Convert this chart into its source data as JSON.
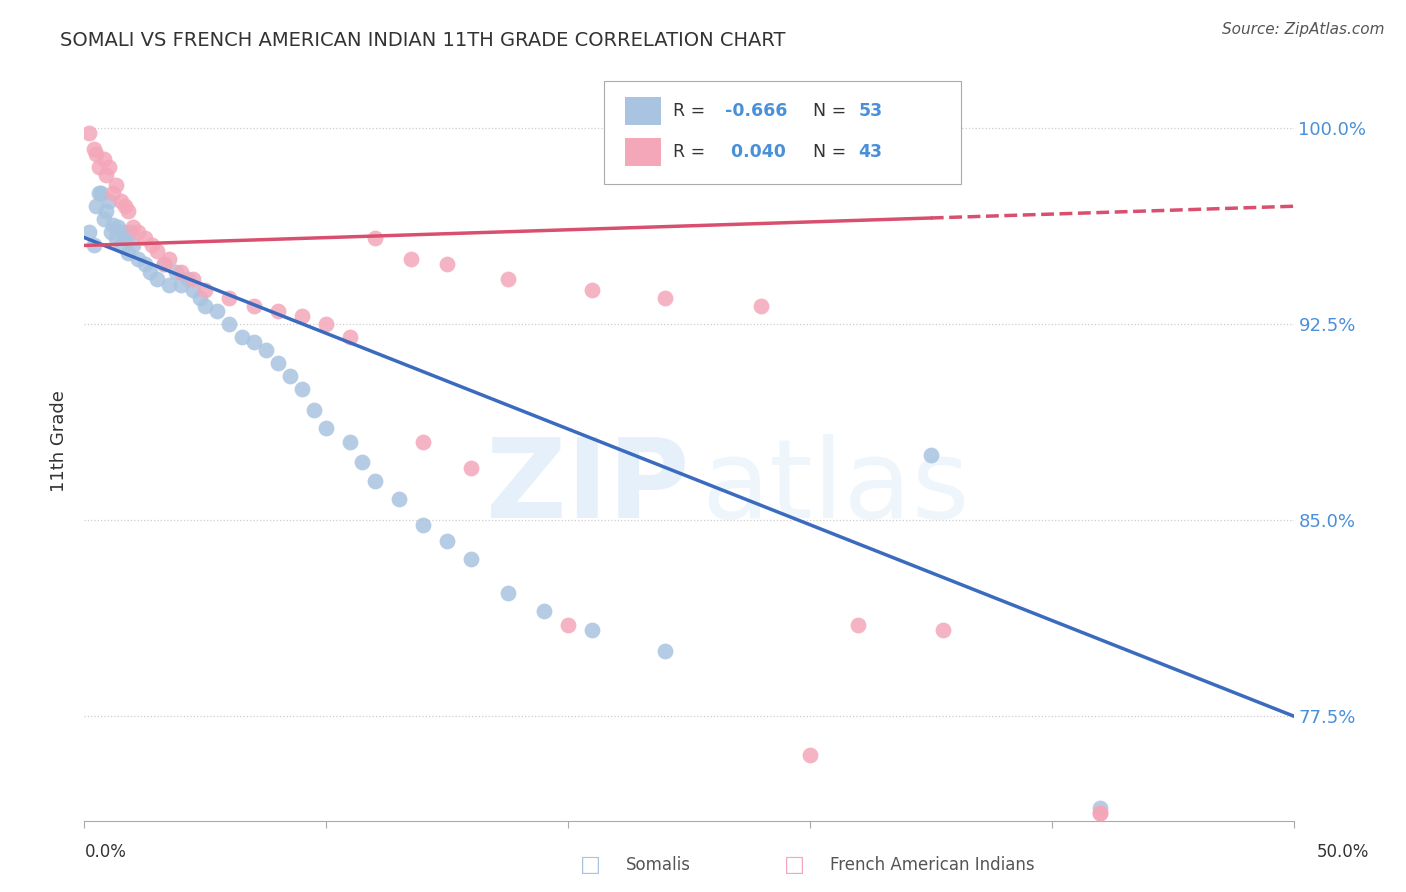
{
  "title": "SOMALI VS FRENCH AMERICAN INDIAN 11TH GRADE CORRELATION CHART",
  "source": "Source: ZipAtlas.com",
  "ylabel": "11th Grade",
  "ytick_labels": [
    "77.5%",
    "85.0%",
    "92.5%",
    "100.0%"
  ],
  "ytick_values": [
    0.775,
    0.85,
    0.925,
    1.0
  ],
  "xlim": [
    0.0,
    0.5
  ],
  "ylim": [
    0.735,
    1.025
  ],
  "legend_somali_R": "-0.666",
  "legend_somali_N": "53",
  "legend_french_R": "0.040",
  "legend_french_N": "43",
  "somali_color": "#a8c4e0",
  "french_color": "#f4a7b9",
  "somali_line_color": "#3a6bbf",
  "french_line_color": "#d94f6e",
  "somali_points_x": [
    0.002,
    0.004,
    0.005,
    0.006,
    0.007,
    0.008,
    0.009,
    0.01,
    0.011,
    0.012,
    0.013,
    0.014,
    0.015,
    0.016,
    0.017,
    0.018,
    0.019,
    0.02,
    0.022,
    0.025,
    0.027,
    0.03,
    0.033,
    0.035,
    0.038,
    0.04,
    0.043,
    0.045,
    0.048,
    0.05,
    0.055,
    0.06,
    0.065,
    0.07,
    0.075,
    0.08,
    0.085,
    0.09,
    0.095,
    0.1,
    0.11,
    0.115,
    0.12,
    0.13,
    0.14,
    0.15,
    0.16,
    0.175,
    0.19,
    0.21,
    0.24,
    0.35,
    0.42
  ],
  "somali_points_y": [
    0.96,
    0.955,
    0.97,
    0.975,
    0.975,
    0.965,
    0.968,
    0.972,
    0.96,
    0.963,
    0.958,
    0.962,
    0.955,
    0.96,
    0.958,
    0.952,
    0.96,
    0.955,
    0.95,
    0.948,
    0.945,
    0.942,
    0.948,
    0.94,
    0.945,
    0.94,
    0.942,
    0.938,
    0.935,
    0.932,
    0.93,
    0.925,
    0.92,
    0.918,
    0.915,
    0.91,
    0.905,
    0.9,
    0.892,
    0.885,
    0.88,
    0.872,
    0.865,
    0.858,
    0.848,
    0.842,
    0.835,
    0.822,
    0.815,
    0.808,
    0.8,
    0.875,
    0.74
  ],
  "french_points_x": [
    0.002,
    0.004,
    0.005,
    0.006,
    0.008,
    0.009,
    0.01,
    0.012,
    0.013,
    0.015,
    0.017,
    0.018,
    0.02,
    0.022,
    0.025,
    0.028,
    0.03,
    0.033,
    0.035,
    0.04,
    0.045,
    0.05,
    0.06,
    0.07,
    0.08,
    0.09,
    0.1,
    0.11,
    0.12,
    0.135,
    0.15,
    0.175,
    0.21,
    0.24,
    0.28,
    0.32,
    0.355,
    0.42,
    0.14,
    0.16,
    0.2,
    0.3,
    0.42
  ],
  "french_points_y": [
    0.998,
    0.992,
    0.99,
    0.985,
    0.988,
    0.982,
    0.985,
    0.975,
    0.978,
    0.972,
    0.97,
    0.968,
    0.962,
    0.96,
    0.958,
    0.955,
    0.953,
    0.948,
    0.95,
    0.945,
    0.942,
    0.938,
    0.935,
    0.932,
    0.93,
    0.928,
    0.925,
    0.92,
    0.958,
    0.95,
    0.948,
    0.942,
    0.938,
    0.935,
    0.932,
    0.81,
    0.808,
    0.738,
    0.88,
    0.87,
    0.81,
    0.76,
    0.738
  ]
}
